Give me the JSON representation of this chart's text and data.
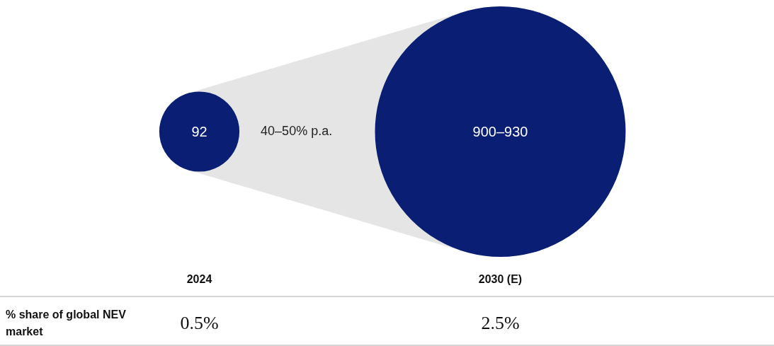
{
  "chart_data": {
    "type": "other",
    "categories": [
      "2024",
      "2030 (E)"
    ],
    "values": [
      92,
      900
    ],
    "value_labels": [
      "92",
      "900–930"
    ],
    "color": "#0a1f73",
    "annotations": [
      "40–50% p.a.",
      "% share of global NEV market",
      "0.5%",
      "2.5%"
    ]
  }
}
